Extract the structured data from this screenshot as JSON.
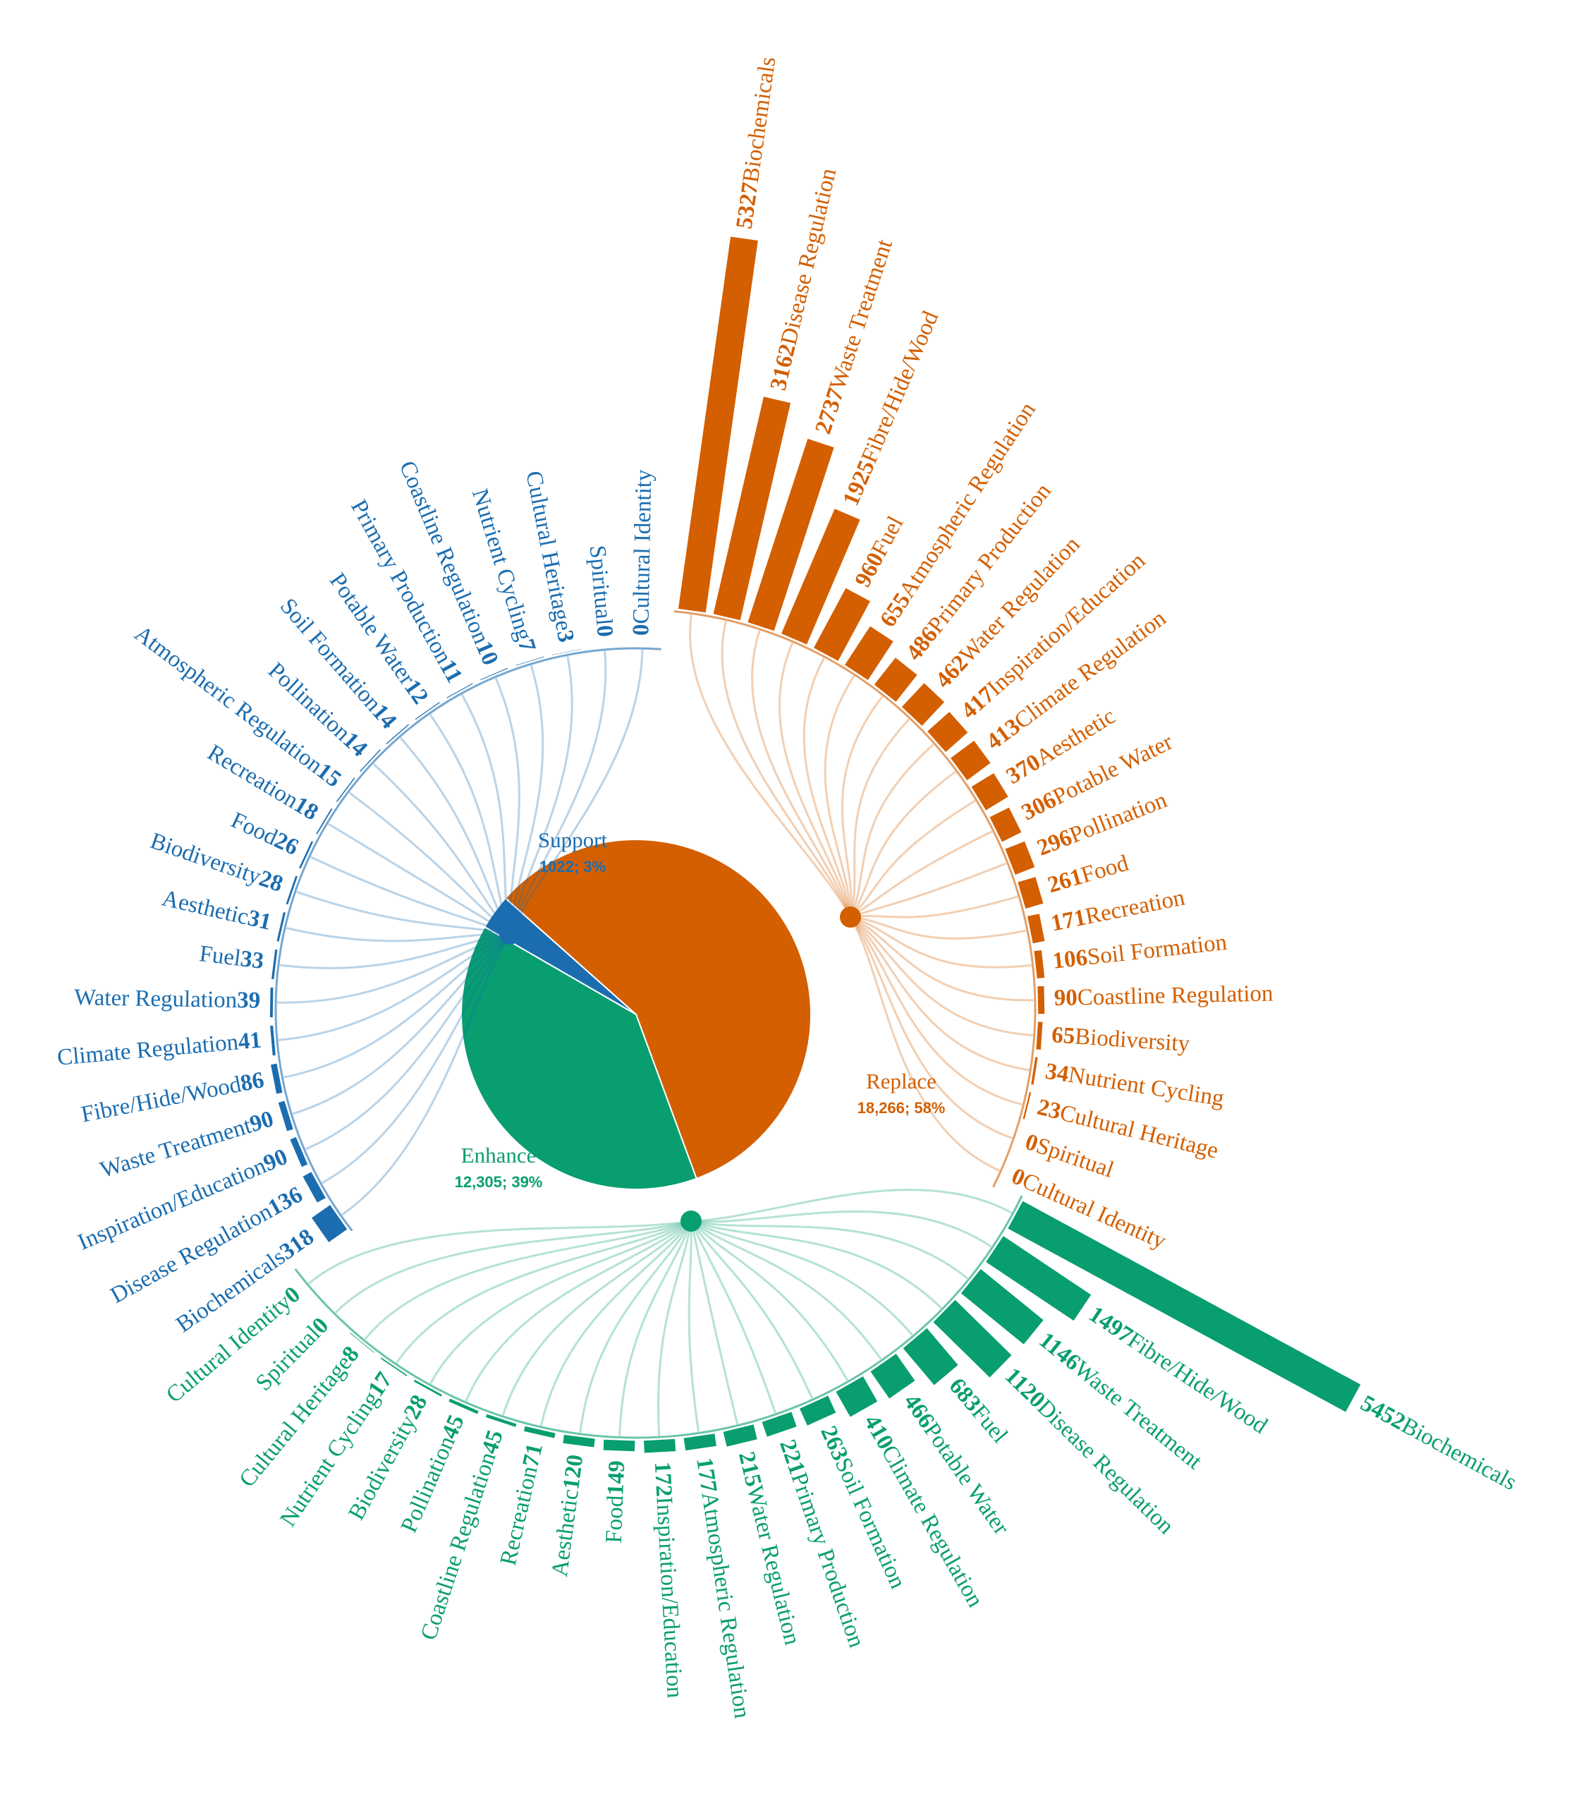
{
  "chart_data": {
    "type": "radial-bar",
    "pie": {
      "categories": [
        "Support",
        "Replace",
        "Enhance"
      ],
      "values": [
        1022,
        18266,
        12305
      ],
      "value_labels": [
        "1022; 3%",
        "18,266; 58%",
        "12,305; 39%"
      ],
      "colors": [
        "#1b6db0",
        "#d35f00",
        "#089e70"
      ]
    },
    "groups": [
      {
        "categories": [
          "Biochemicals",
          "Disease Regulation",
          "Inspiration/Education",
          "Waste Treatment",
          "Fibre/Hide/Wood",
          "Climate Regulation",
          "Water Regulation",
          "Fuel",
          "Aesthetic",
          "Biodiversity",
          "Food",
          "Recreation",
          "Atmospheric Regulation",
          "Pollination",
          "Soil Formation",
          "Potable Water",
          "Primary Production",
          "Coastline Regulation",
          "Nutrient Cycling",
          "Cultural Heritage",
          "Spiritual",
          "Cultural Identity"
        ],
        "values": [
          318,
          136,
          90,
          90,
          86,
          41,
          39,
          33,
          31,
          28,
          26,
          18,
          15,
          14,
          14,
          12,
          11,
          10,
          7,
          3,
          0,
          0
        ]
      },
      {
        "categories": [
          "Biochemicals",
          "Disease Regulation",
          "Waste Treatment",
          "Fibre/Hide/Wood",
          "Fuel",
          "Atmospheric Regulation",
          "Primary Production",
          "Water Regulation",
          "Inspiration/Education",
          "Climate Regulation",
          "Aesthetic",
          "Potable Water",
          "Pollination",
          "Food",
          "Recreation",
          "Soil Formation",
          "Coastline Regulation",
          "Biodiversity",
          "Nutrient Cycling",
          "Cultural Heritage",
          "Spiritual",
          "Cultural Identity"
        ],
        "values": [
          5327,
          3162,
          2737,
          1925,
          960,
          655,
          486,
          462,
          417,
          413,
          370,
          306,
          296,
          261,
          171,
          106,
          90,
          65,
          34,
          23,
          0,
          0
        ]
      },
      {
        "categories": [
          "Biochemicals",
          "Fibre/Hide/Wood",
          "Waste Treatment",
          "Disease Regulation",
          "Fuel",
          "Potable Water",
          "Climate Regulation",
          "Soil Formation",
          "Primary Production",
          "Water Regulation",
          "Atmospheric Regulation",
          "Inspiration/Education",
          "Food",
          "Aesthetic",
          "Recreation",
          "Coastline Regulation",
          "Pollination",
          "Biodiversity",
          "Nutrient Cycling",
          "Cultural Heritage",
          "Spiritual",
          "Cultural Identity"
        ],
        "values": [
          5452,
          1497,
          1146,
          1120,
          683,
          466,
          410,
          263,
          221,
          215,
          177,
          172,
          149,
          120,
          71,
          45,
          45,
          28,
          17,
          8,
          0,
          0
        ]
      }
    ]
  }
}
